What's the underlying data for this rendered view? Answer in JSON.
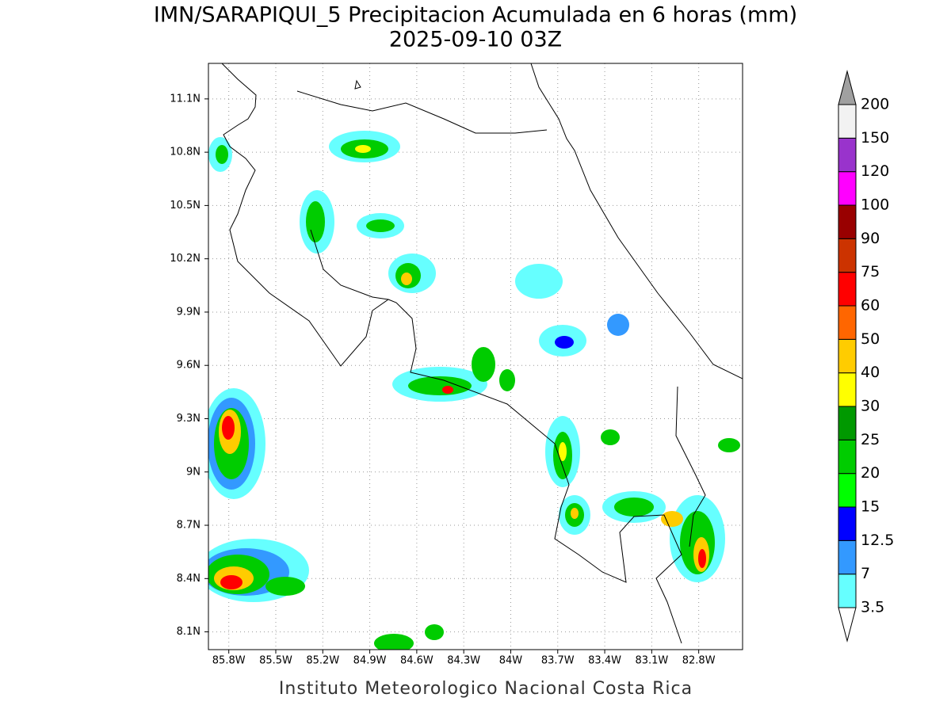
{
  "title": "IMN/SARAPIQUI_5 Precipitacion Acumulada en 6 horas (mm)",
  "subtitle": "2025-09-10 03Z",
  "footer": "Instituto Meteorologico Nacional Costa Rica",
  "map": {
    "xlim": [
      -85.93,
      -82.52
    ],
    "ylim": [
      8.0,
      11.3
    ],
    "xticks": [
      {
        "value": -85.8,
        "label": "85.8W"
      },
      {
        "value": -85.5,
        "label": "85.5W"
      },
      {
        "value": -85.2,
        "label": "85.2W"
      },
      {
        "value": -84.9,
        "label": "84.9W"
      },
      {
        "value": -84.6,
        "label": "84.6W"
      },
      {
        "value": -84.3,
        "label": "84.3W"
      },
      {
        "value": -84.0,
        "label": "84W"
      },
      {
        "value": -83.7,
        "label": "83.7W"
      },
      {
        "value": -83.4,
        "label": "83.4W"
      },
      {
        "value": -83.1,
        "label": "83.1W"
      },
      {
        "value": -82.8,
        "label": "82.8W"
      }
    ],
    "yticks": [
      {
        "value": 8.1,
        "label": "8.1N"
      },
      {
        "value": 8.4,
        "label": "8.4N"
      },
      {
        "value": 8.7,
        "label": "8.7N"
      },
      {
        "value": 9.0,
        "label": "9N"
      },
      {
        "value": 9.3,
        "label": "9.3N"
      },
      {
        "value": 9.6,
        "label": "9.6N"
      },
      {
        "value": 9.9,
        "label": "9.9N"
      },
      {
        "value": 10.2,
        "label": "10.2N"
      },
      {
        "value": 10.5,
        "label": "10.5N"
      },
      {
        "value": 10.8,
        "label": "10.8N"
      },
      {
        "value": 11.1,
        "label": "11.1N"
      }
    ],
    "grid": true
  },
  "colorbar": {
    "levels": [
      3.5,
      7,
      12.5,
      15,
      20,
      25,
      30,
      40,
      50,
      60,
      75,
      90,
      100,
      120,
      150,
      200
    ],
    "colors": [
      "#66ffff",
      "#3399ff",
      "#0000ff",
      "#00ff00",
      "#00cc00",
      "#009900",
      "#ffff00",
      "#ffcc00",
      "#ff6600",
      "#ff0000",
      "#cc3300",
      "#990000",
      "#ff00ff",
      "#9933cc",
      "#f2f2f2"
    ],
    "under_color": "#ffffff",
    "over_color": "#a0a0a0"
  }
}
